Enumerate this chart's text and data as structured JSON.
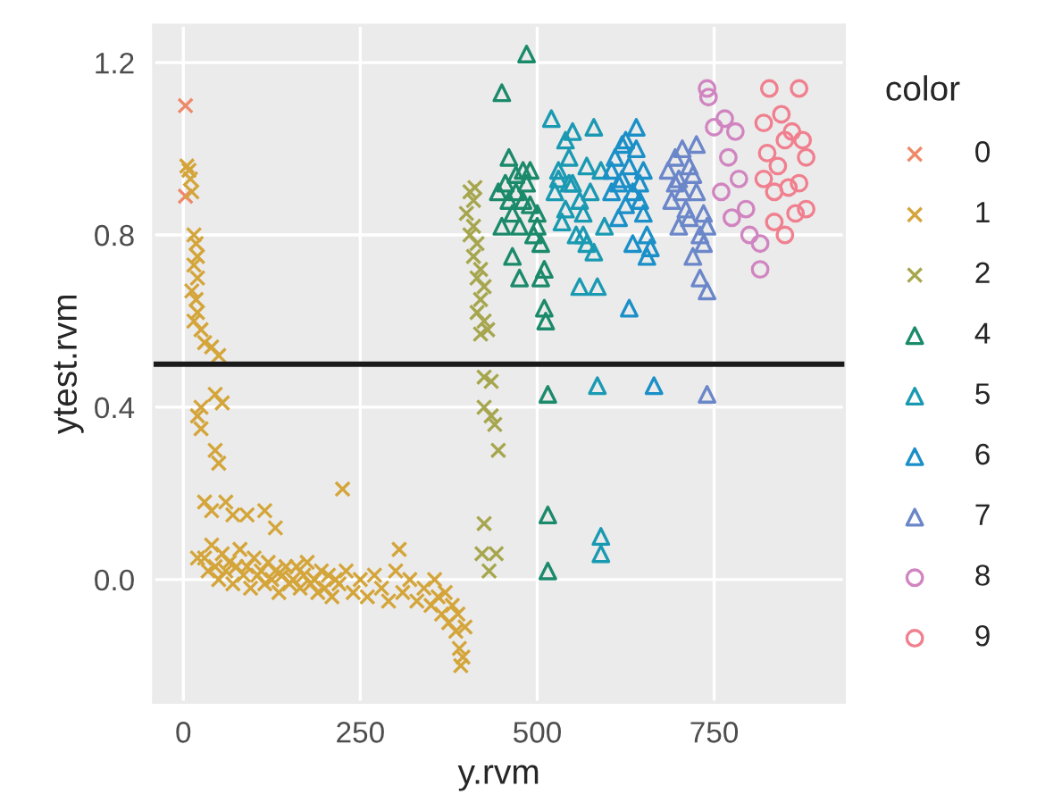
{
  "chart_data": {
    "type": "scatter",
    "xlabel": "y.rvm",
    "ylabel": "ytest.rvm",
    "legend_title": "color",
    "xlim": [
      -42,
      934
    ],
    "ylim": [
      -0.285,
      1.287
    ],
    "xticks": [
      0,
      250,
      500,
      750
    ],
    "yticks": [
      {
        "value": 0,
        "label": "0.0"
      },
      0.4,
      0.8,
      1.2
    ],
    "grid": true,
    "legend": "right",
    "ref_lines": [
      {
        "axis": "y",
        "value": 0.5,
        "color": "#1a1a1a"
      }
    ],
    "series": [
      {
        "name": "0",
        "color": "#ee8a6a",
        "marker": "cross",
        "x": [
          3,
          3
        ],
        "values": [
          1.1,
          0.89
        ]
      },
      {
        "name": "1",
        "color": "#d4a53a",
        "marker": "cross",
        "x": [
          5,
          8,
          10,
          12,
          15,
          18,
          20,
          15,
          20,
          12,
          18,
          20,
          15,
          25,
          30,
          40,
          50,
          45,
          55,
          25,
          20,
          25,
          45,
          50,
          30,
          60,
          40,
          70,
          90,
          115,
          130,
          225,
          20,
          30,
          35,
          40,
          45,
          50,
          55,
          60,
          65,
          70,
          75,
          80,
          85,
          90,
          95,
          100,
          105,
          110,
          115,
          120,
          125,
          130,
          135,
          140,
          145,
          150,
          155,
          160,
          165,
          170,
          175,
          180,
          185,
          190,
          195,
          200,
          205,
          210,
          215,
          220,
          230,
          240,
          250,
          260,
          270,
          280,
          290,
          300,
          305,
          310,
          320,
          330,
          340,
          350,
          355,
          360,
          365,
          370,
          375,
          380,
          385,
          390,
          392,
          395,
          398,
          388
        ],
        "values": [
          0.96,
          0.95,
          0.93,
          0.9,
          0.8,
          0.78,
          0.75,
          0.73,
          0.7,
          0.67,
          0.65,
          0.62,
          0.6,
          0.58,
          0.55,
          0.54,
          0.52,
          0.43,
          0.41,
          0.4,
          0.38,
          0.35,
          0.3,
          0.27,
          0.18,
          0.18,
          0.16,
          0.15,
          0.15,
          0.16,
          0.12,
          0.21,
          0.05,
          0.05,
          0.02,
          0.08,
          0.03,
          0.0,
          0.06,
          0.02,
          0.04,
          -0.01,
          0.03,
          0.07,
          0.01,
          0.03,
          -0.02,
          0.05,
          0.01,
          0.02,
          -0.01,
          0.04,
          0.0,
          0.02,
          -0.03,
          0.01,
          0.03,
          -0.01,
          0.0,
          0.03,
          -0.02,
          0.01,
          0.04,
          -0.01,
          0.0,
          -0.03,
          0.02,
          -0.02,
          0.01,
          -0.04,
          0.0,
          -0.01,
          0.02,
          -0.03,
          0.0,
          -0.04,
          0.01,
          -0.02,
          -0.05,
          0.02,
          0.07,
          -0.03,
          0.0,
          -0.05,
          -0.02,
          -0.06,
          0.0,
          -0.04,
          -0.08,
          -0.03,
          -0.1,
          -0.06,
          -0.12,
          -0.16,
          -0.2,
          -0.18,
          -0.11,
          -0.08
        ]
      },
      {
        "name": "2",
        "color": "#a6a64e",
        "marker": "cross",
        "x": [
          405,
          410,
          400,
          410,
          405,
          415,
          410,
          420,
          415,
          425,
          420,
          415,
          425,
          430,
          420,
          412,
          425,
          435,
          425,
          435,
          440,
          445,
          425,
          422,
          442,
          432
        ],
        "values": [
          0.9,
          0.88,
          0.85,
          0.82,
          0.8,
          0.78,
          0.75,
          0.72,
          0.7,
          0.68,
          0.65,
          0.62,
          0.6,
          0.58,
          0.57,
          0.91,
          0.47,
          0.46,
          0.4,
          0.38,
          0.36,
          0.3,
          0.13,
          0.06,
          0.06,
          0.02
        ]
      },
      {
        "name": "4",
        "color": "#1b8a6b",
        "marker": "triangle",
        "x": [
          450,
          485,
          515,
          515,
          515,
          510,
          512,
          465,
          475,
          505,
          455,
          460,
          470,
          480,
          490,
          500,
          445,
          465,
          475,
          485,
          495,
          505,
          450,
          470,
          490,
          500,
          510,
          460,
          480
        ],
        "values": [
          1.13,
          1.22,
          0.43,
          0.15,
          0.02,
          0.63,
          0.6,
          0.75,
          0.7,
          0.7,
          0.92,
          0.98,
          0.9,
          0.88,
          0.95,
          0.85,
          0.9,
          0.85,
          0.82,
          0.92,
          0.8,
          0.78,
          0.82,
          0.94,
          0.87,
          0.82,
          0.72,
          0.88,
          0.95
        ]
      },
      {
        "name": "5",
        "color": "#1a9ab2",
        "marker": "triangle",
        "x": [
          520,
          580,
          585,
          590,
          590,
          560,
          585,
          530,
          540,
          550,
          560,
          570,
          525,
          535,
          545,
          555,
          565,
          575,
          595,
          530,
          550,
          570,
          590,
          540,
          580,
          545,
          565
        ],
        "values": [
          1.07,
          1.05,
          0.45,
          0.1,
          0.06,
          0.68,
          0.68,
          0.95,
          1.02,
          0.92,
          0.88,
          0.96,
          0.9,
          0.83,
          0.98,
          0.8,
          0.85,
          0.9,
          0.82,
          0.93,
          1.04,
          0.78,
          0.95,
          0.86,
          0.76,
          0.92,
          0.8
        ]
      },
      {
        "name": "6",
        "color": "#1a8fc8",
        "marker": "triangle",
        "x": [
          630,
          665,
          640,
          605,
          615,
          625,
          635,
          645,
          655,
          660,
          610,
          620,
          630,
          640,
          650,
          615,
          625,
          645,
          655,
          635,
          605,
          620,
          650
        ],
        "values": [
          0.63,
          0.45,
          1.05,
          0.95,
          0.92,
          1.02,
          0.9,
          0.88,
          0.8,
          0.77,
          0.98,
          0.93,
          0.96,
          1.0,
          0.85,
          0.84,
          0.87,
          0.92,
          0.75,
          0.78,
          0.9,
          1.01,
          0.95
        ]
      },
      {
        "name": "7",
        "color": "#6b87c9",
        "marker": "triangle",
        "x": [
          740,
          740,
          730,
          720,
          685,
          695,
          705,
          715,
          725,
          735,
          690,
          700,
          710,
          720,
          730,
          695,
          705,
          715,
          725,
          735,
          700,
          740
        ],
        "values": [
          0.43,
          0.67,
          0.7,
          0.75,
          0.95,
          0.92,
          1.0,
          0.96,
          0.9,
          0.85,
          0.88,
          0.82,
          0.86,
          0.94,
          0.8,
          0.98,
          0.9,
          0.84,
          1.01,
          0.78,
          0.93,
          0.82
        ]
      },
      {
        "name": "8",
        "color": "#d185c0",
        "marker": "circle",
        "x": [
          740,
          742,
          815,
          815,
          750,
          765,
          785,
          770,
          795,
          760,
          780,
          800,
          775
        ],
        "values": [
          1.14,
          1.12,
          0.72,
          0.78,
          1.05,
          1.07,
          0.93,
          0.98,
          0.86,
          0.9,
          1.04,
          0.8,
          0.84
        ]
      },
      {
        "name": "9",
        "color": "#f0808f",
        "marker": "circle",
        "x": [
          828,
          870,
          820,
          835,
          850,
          865,
          880,
          840,
          855,
          870,
          880,
          825,
          845,
          860,
          835,
          850,
          875,
          820
        ],
        "values": [
          1.14,
          1.14,
          1.06,
          0.9,
          1.02,
          0.85,
          0.98,
          0.96,
          0.91,
          0.92,
          0.86,
          0.99,
          1.08,
          1.04,
          0.83,
          0.8,
          1.02,
          0.93
        ]
      }
    ]
  }
}
